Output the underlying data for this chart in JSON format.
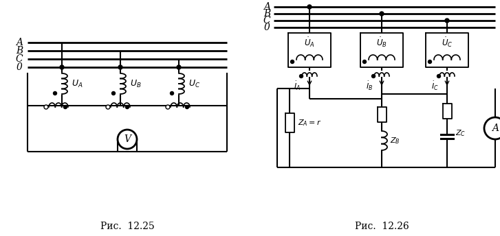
{
  "fig_width": 7.27,
  "fig_height": 3.44,
  "dpi": 100,
  "background": "#ffffff",
  "line_color": "#000000",
  "line_width": 1.5,
  "caption1": "Рис.  12.25",
  "caption2": "Рис.  12.26",
  "caption_fontsize": 10,
  "labels_left": [
    "A",
    "B",
    "C",
    "0"
  ],
  "labels_right": [
    "A",
    "B",
    "C",
    "0"
  ],
  "label_fontsize": 10
}
